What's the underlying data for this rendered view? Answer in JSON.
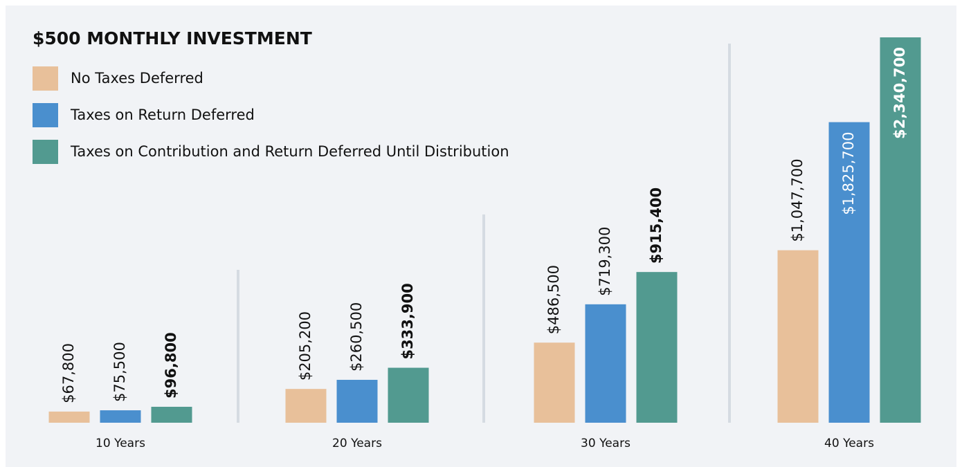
{
  "chart_data": {
    "type": "bar",
    "title": "$500 MONTHLY INVESTMENT",
    "categories": [
      "10 Years",
      "20 Years",
      "30 Years",
      "40 Years"
    ],
    "series": [
      {
        "name": "No Taxes Deferred",
        "color": "#e8c09a",
        "values": [
          67800,
          205200,
          486500,
          1047700
        ],
        "value_labels": [
          "$67,800",
          "$205,200",
          "$486,500",
          "$1,047,700"
        ]
      },
      {
        "name": "Taxes on Return Deferred",
        "color": "#4a8fce",
        "values": [
          75500,
          260500,
          719300,
          1825700
        ],
        "value_labels": [
          "$75,500",
          "$260,500",
          "$719,300",
          "$1,825,700"
        ]
      },
      {
        "name": "Taxes on Contribution and Return Deferred Until Distribution",
        "color": "#529a90",
        "values": [
          96800,
          333900,
          915400,
          2340700
        ],
        "value_labels": [
          "$96,800",
          "$333,900",
          "$915,400",
          "$2,340,700"
        ]
      }
    ]
  }
}
